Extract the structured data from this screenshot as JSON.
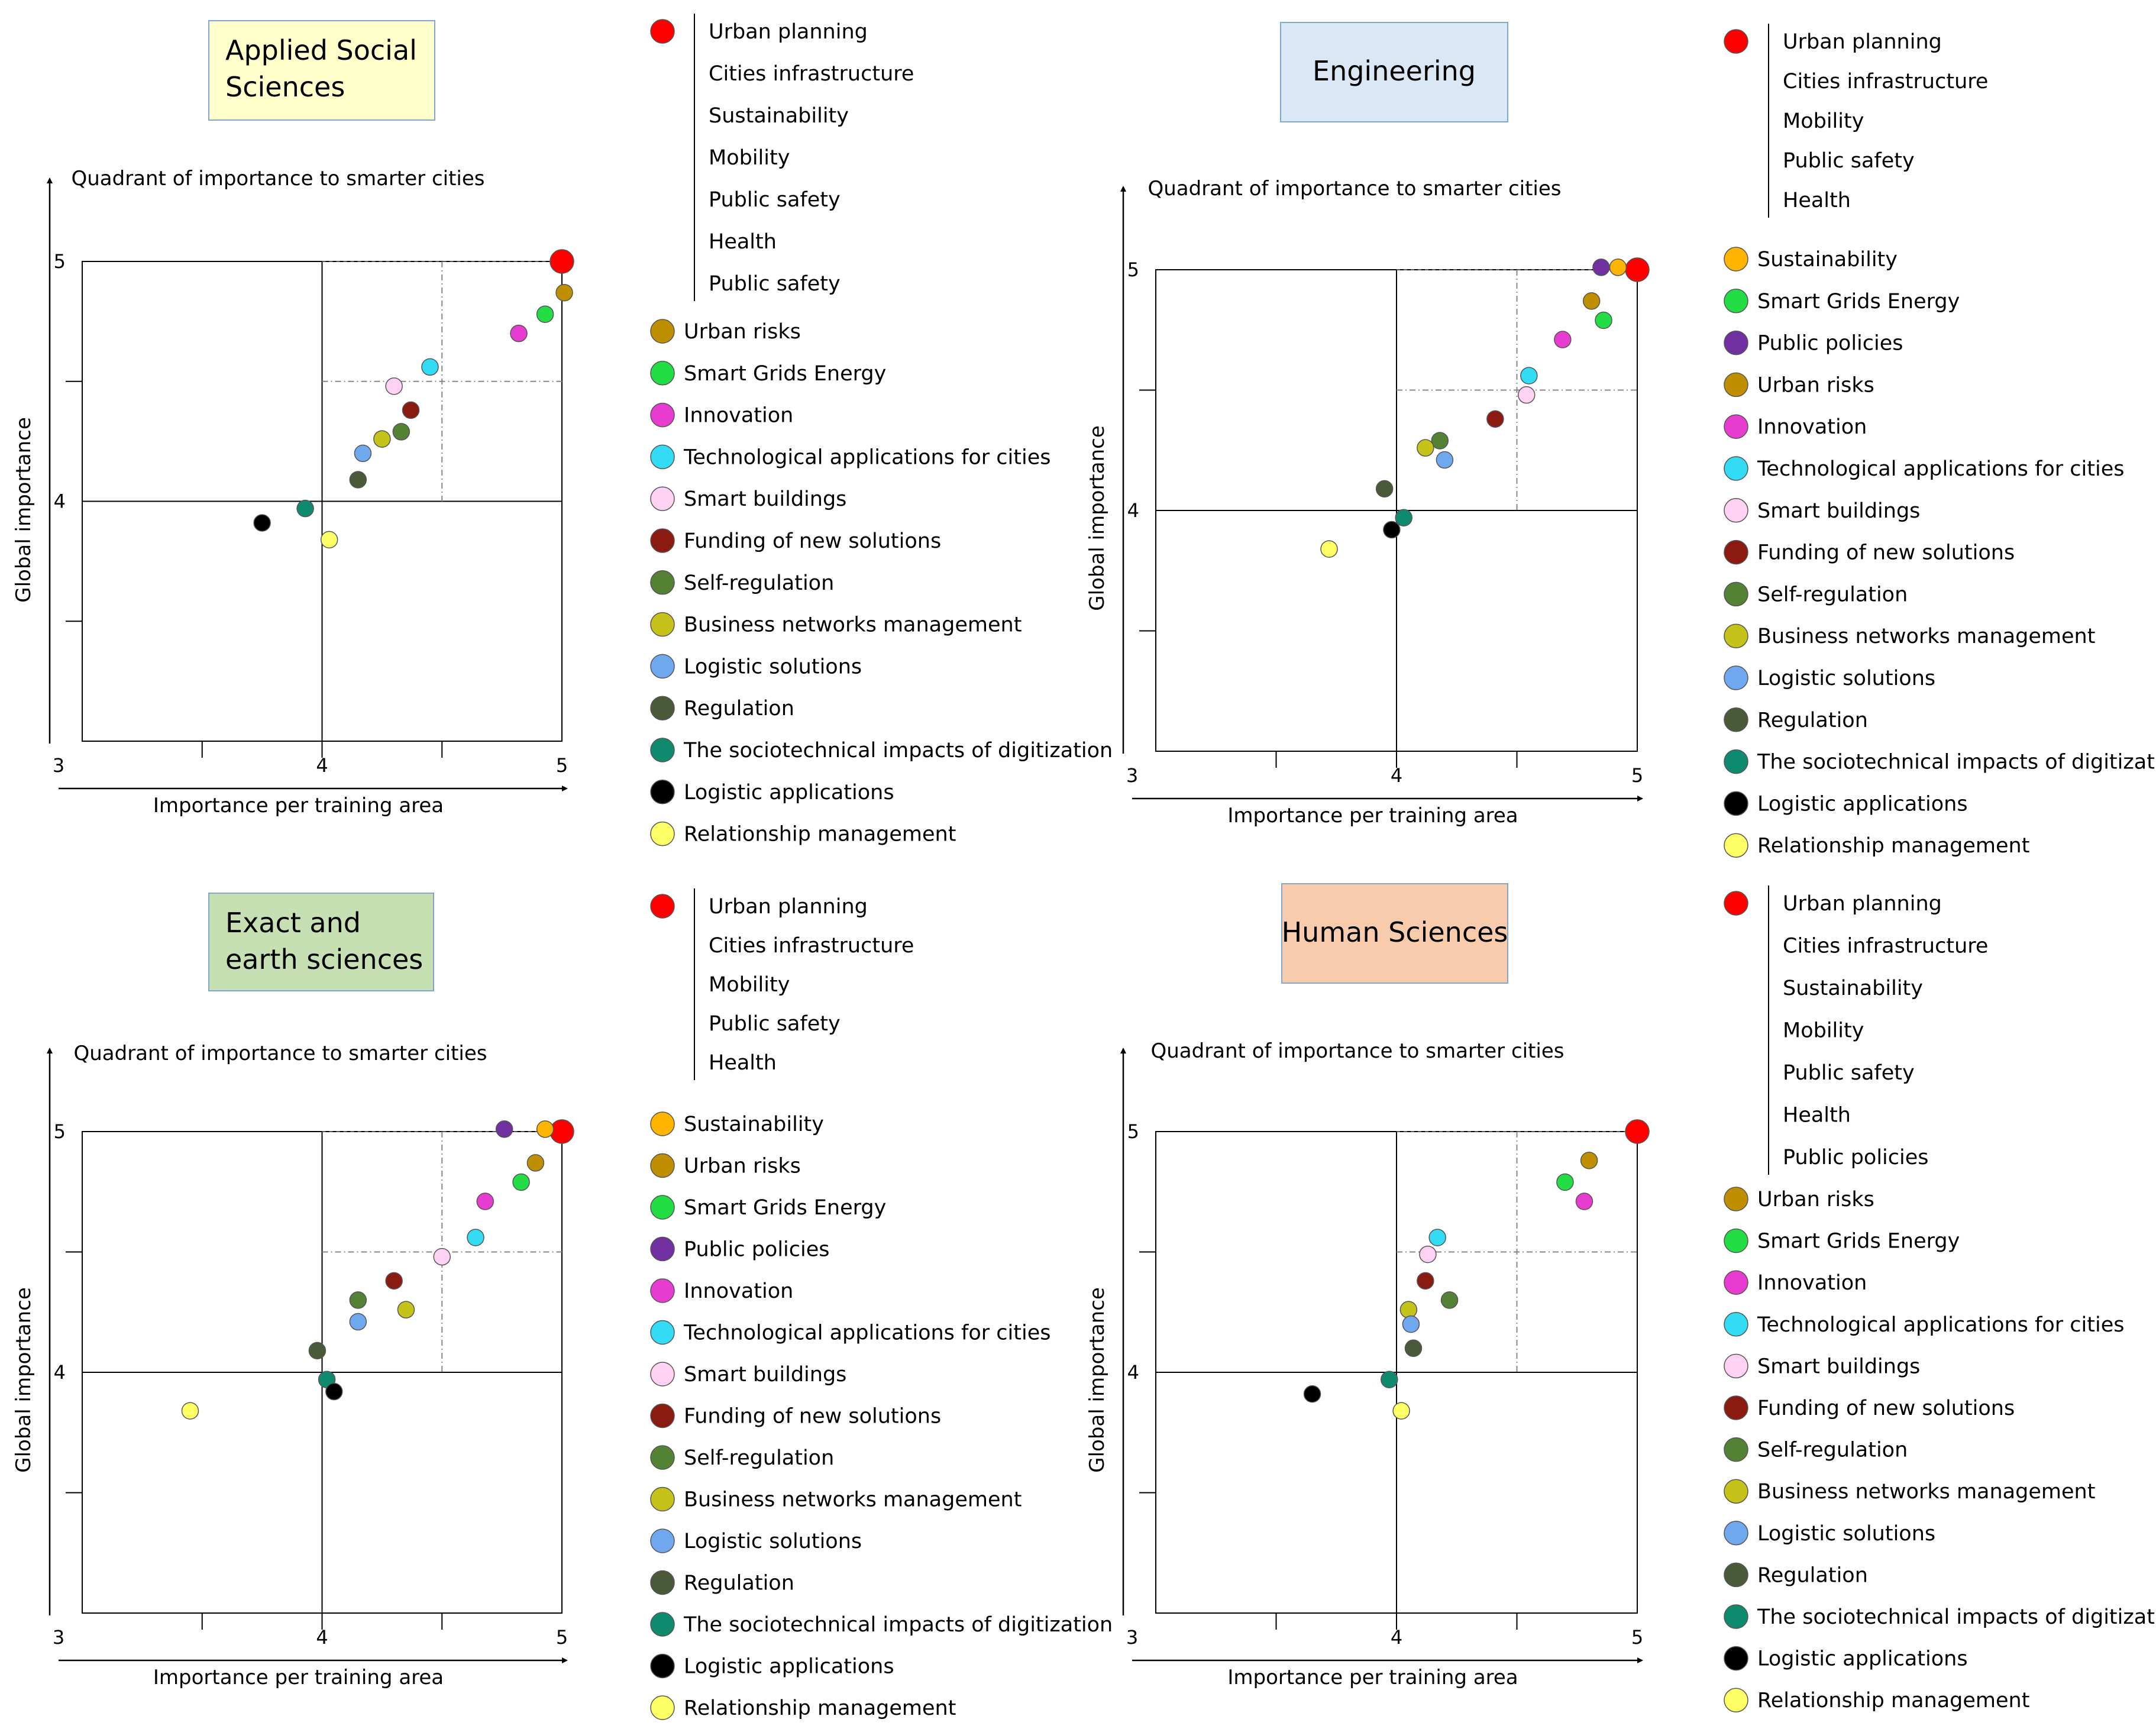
{
  "colors": {
    "red": "#ff0000",
    "gold": "#ffb400",
    "brown": "#bf8f00",
    "green": "#22dd44",
    "purple": "#7030a0",
    "magenta": "#e83bd0",
    "cyan": "#33dcf4",
    "pink": "#ffd2f4",
    "maroon": "#8b1a10",
    "olive": "#548235",
    "yellowgreen": "#c5c31a",
    "lightblue": "#70a8ef",
    "darkolive": "#4a5a38",
    "teal": "#0e8a6e",
    "black": "#000000",
    "yellow": "#ffff66"
  },
  "chart_data": [
    {
      "type": "scatter",
      "title": "Applied Social Sciences",
      "title_bg": "#ffffcc",
      "subtitle": "Quadrant of importance to smarter cities",
      "xlabel": "Importance per training area",
      "ylabel": "Global importance",
      "xlim": [
        3,
        5
      ],
      "ylim": [
        3,
        5
      ],
      "xticks": [
        "3",
        "4",
        "5"
      ],
      "yticks": [
        "4",
        "5"
      ],
      "points": [
        {
          "label": "Urban planning",
          "x": 5.0,
          "y": 5.0,
          "color": "red",
          "big": true
        },
        {
          "label": "Urban risks",
          "x": 5.01,
          "y": 4.87,
          "color": "brown"
        },
        {
          "label": "Smart Grids Energy",
          "x": 4.93,
          "y": 4.78,
          "color": "green"
        },
        {
          "label": "Innovation",
          "x": 4.82,
          "y": 4.7,
          "color": "magenta"
        },
        {
          "label": "Technological applications for cities",
          "x": 4.45,
          "y": 4.56,
          "color": "cyan"
        },
        {
          "label": "Smart buildings",
          "x": 4.3,
          "y": 4.48,
          "color": "pink"
        },
        {
          "label": "Funding of new solutions",
          "x": 4.37,
          "y": 4.38,
          "color": "maroon"
        },
        {
          "label": "Self-regulation",
          "x": 4.33,
          "y": 4.29,
          "color": "olive"
        },
        {
          "label": "Business networks management",
          "x": 4.25,
          "y": 4.26,
          "color": "yellowgreen"
        },
        {
          "label": "Logistic solutions",
          "x": 4.17,
          "y": 4.2,
          "color": "lightblue"
        },
        {
          "label": "Regulation",
          "x": 4.15,
          "y": 4.09,
          "color": "darkolive"
        },
        {
          "label": "The sociotechnical impacts of digitization",
          "x": 3.93,
          "y": 3.97,
          "color": "teal"
        },
        {
          "label": "Logistic applications",
          "x": 3.75,
          "y": 3.91,
          "color": "black"
        },
        {
          "label": "Relationship management",
          "x": 4.03,
          "y": 3.84,
          "color": "yellow"
        }
      ],
      "legend_group": [
        "Urban planning",
        "Cities infrastructure",
        "Sustainability",
        "Mobility",
        "Public safety",
        "Health",
        "Public safety"
      ],
      "legend_group_color": "red",
      "legend_items": [
        {
          "label": "Urban risks",
          "color": "brown"
        },
        {
          "label": "Smart Grids Energy",
          "color": "green"
        },
        {
          "label": "Innovation",
          "color": "magenta"
        },
        {
          "label": "Technological applications for cities",
          "color": "cyan"
        },
        {
          "label": "Smart buildings",
          "color": "pink"
        },
        {
          "label": "Funding of new solutions",
          "color": "maroon"
        },
        {
          "label": "Self-regulation",
          "color": "olive"
        },
        {
          "label": "Business networks management",
          "color": "yellowgreen"
        },
        {
          "label": "Logistic solutions",
          "color": "lightblue"
        },
        {
          "label": "Regulation",
          "color": "darkolive"
        },
        {
          "label": "The sociotechnical impacts of digitization",
          "color": "teal"
        },
        {
          "label": "Logistic applications",
          "color": "black"
        },
        {
          "label": "Relationship management",
          "color": "yellow"
        }
      ]
    },
    {
      "type": "scatter",
      "title": "Engineering",
      "title_bg": "#dae8f5",
      "subtitle": "Quadrant of importance to smarter cities",
      "xlabel": "Importance per training area",
      "ylabel": "Global importance",
      "xlim": [
        3,
        5
      ],
      "ylim": [
        3,
        5
      ],
      "xticks": [
        "3",
        "4",
        "5"
      ],
      "yticks": [
        "4",
        "5"
      ],
      "points": [
        {
          "label": "Urban planning",
          "x": 5.0,
          "y": 5.0,
          "color": "red",
          "big": true
        },
        {
          "label": "Sustainability",
          "x": 4.92,
          "y": 5.01,
          "color": "gold"
        },
        {
          "label": "Public policies",
          "x": 4.85,
          "y": 5.01,
          "color": "purple"
        },
        {
          "label": "Urban risks",
          "x": 4.81,
          "y": 4.87,
          "color": "brown"
        },
        {
          "label": "Smart Grids Energy",
          "x": 4.86,
          "y": 4.79,
          "color": "green"
        },
        {
          "label": "Innovation",
          "x": 4.69,
          "y": 4.71,
          "color": "magenta"
        },
        {
          "label": "Technological applications for cities",
          "x": 4.55,
          "y": 4.56,
          "color": "cyan"
        },
        {
          "label": "Smart buildings",
          "x": 4.54,
          "y": 4.48,
          "color": "pink"
        },
        {
          "label": "Funding of new solutions",
          "x": 4.41,
          "y": 4.38,
          "color": "maroon"
        },
        {
          "label": "Self-regulation",
          "x": 4.18,
          "y": 4.29,
          "color": "olive"
        },
        {
          "label": "Business networks management",
          "x": 4.12,
          "y": 4.26,
          "color": "yellowgreen"
        },
        {
          "label": "Logistic solutions",
          "x": 4.2,
          "y": 4.21,
          "color": "lightblue"
        },
        {
          "label": "Regulation",
          "x": 3.95,
          "y": 4.09,
          "color": "darkolive"
        },
        {
          "label": "The sociotechnical impacts of digitization",
          "x": 4.03,
          "y": 3.97,
          "color": "teal"
        },
        {
          "label": "Logistic applications",
          "x": 3.98,
          "y": 3.92,
          "color": "black"
        },
        {
          "label": "Relationship management",
          "x": 3.72,
          "y": 3.84,
          "color": "yellow"
        }
      ],
      "legend_group": [
        "Urban planning",
        "Cities infrastructure",
        "Mobility",
        "Public safety",
        "Health"
      ],
      "legend_group_color": "red",
      "legend_items": [
        {
          "label": "Sustainability",
          "color": "gold"
        },
        {
          "label": "Smart Grids Energy",
          "color": "green"
        },
        {
          "label": "Public policies",
          "color": "purple"
        },
        {
          "label": "Urban risks",
          "color": "brown"
        },
        {
          "label": "Innovation",
          "color": "magenta"
        },
        {
          "label": "Technological applications for cities",
          "color": "cyan"
        },
        {
          "label": "Smart buildings",
          "color": "pink"
        },
        {
          "label": "Funding of new solutions",
          "color": "maroon"
        },
        {
          "label": "Self-regulation",
          "color": "olive"
        },
        {
          "label": "Business networks management",
          "color": "yellowgreen"
        },
        {
          "label": "Logistic solutions",
          "color": "lightblue"
        },
        {
          "label": "Regulation",
          "color": "darkolive"
        },
        {
          "label": "The sociotechnical impacts of digitization",
          "color": "teal"
        },
        {
          "label": "Logistic applications",
          "color": "black"
        },
        {
          "label": "Relationship management",
          "color": "yellow"
        }
      ]
    },
    {
      "type": "scatter",
      "title": "Exact and earth sciences",
      "title_bg": "#c6e0b4",
      "subtitle": "Quadrant of importance to smarter cities",
      "xlabel": "Importance per training area",
      "ylabel": "Global importance",
      "xlim": [
        3,
        5
      ],
      "ylim": [
        3,
        5
      ],
      "xticks": [
        "3",
        "4",
        "5"
      ],
      "yticks": [
        "4",
        "5"
      ],
      "points": [
        {
          "label": "Urban planning",
          "x": 5.0,
          "y": 5.0,
          "color": "red",
          "big": true
        },
        {
          "label": "Sustainability",
          "x": 4.93,
          "y": 5.01,
          "color": "gold"
        },
        {
          "label": "Public policies",
          "x": 4.76,
          "y": 5.01,
          "color": "purple"
        },
        {
          "label": "Urban risks",
          "x": 4.89,
          "y": 4.87,
          "color": "brown"
        },
        {
          "label": "Smart Grids Energy",
          "x": 4.83,
          "y": 4.79,
          "color": "green"
        },
        {
          "label": "Innovation",
          "x": 4.68,
          "y": 4.71,
          "color": "magenta"
        },
        {
          "label": "Technological applications for cities",
          "x": 4.64,
          "y": 4.56,
          "color": "cyan"
        },
        {
          "label": "Smart buildings",
          "x": 4.5,
          "y": 4.48,
          "color": "pink"
        },
        {
          "label": "Funding of new solutions",
          "x": 4.3,
          "y": 4.38,
          "color": "maroon"
        },
        {
          "label": "Self-regulation",
          "x": 4.15,
          "y": 4.3,
          "color": "olive"
        },
        {
          "label": "Business networks management",
          "x": 4.35,
          "y": 4.26,
          "color": "yellowgreen"
        },
        {
          "label": "Logistic solutions",
          "x": 4.15,
          "y": 4.21,
          "color": "lightblue"
        },
        {
          "label": "Regulation",
          "x": 3.98,
          "y": 4.09,
          "color": "darkolive"
        },
        {
          "label": "The sociotechnical impacts of digitization",
          "x": 4.02,
          "y": 3.97,
          "color": "teal"
        },
        {
          "label": "Logistic applications",
          "x": 4.05,
          "y": 3.92,
          "color": "black"
        },
        {
          "label": "Relationship management",
          "x": 3.45,
          "y": 3.84,
          "color": "yellow"
        }
      ],
      "legend_group": [
        "Urban planning",
        "Cities infrastructure",
        "Mobility",
        "Public safety",
        "Health"
      ],
      "legend_group_color": "red",
      "legend_items": [
        {
          "label": "Sustainability",
          "color": "gold"
        },
        {
          "label": "Urban risks",
          "color": "brown"
        },
        {
          "label": "Smart Grids Energy",
          "color": "green"
        },
        {
          "label": "Public policies",
          "color": "purple"
        },
        {
          "label": "Innovation",
          "color": "magenta"
        },
        {
          "label": "Technological applications for cities",
          "color": "cyan"
        },
        {
          "label": "Smart buildings",
          "color": "pink"
        },
        {
          "label": "Funding of new solutions",
          "color": "maroon"
        },
        {
          "label": "Self-regulation",
          "color": "olive"
        },
        {
          "label": "Business networks management",
          "color": "yellowgreen"
        },
        {
          "label": "Logistic solutions",
          "color": "lightblue"
        },
        {
          "label": "Regulation",
          "color": "darkolive"
        },
        {
          "label": "The sociotechnical impacts of digitization",
          "color": "teal"
        },
        {
          "label": "Logistic applications",
          "color": "black"
        },
        {
          "label": "Relationship management",
          "color": "yellow"
        }
      ]
    },
    {
      "type": "scatter",
      "title": "Human Sciences",
      "title_bg": "#f8cbad",
      "subtitle": "Quadrant of importance to smarter cities",
      "xlabel": "Importance per training area",
      "ylabel": "Global importance",
      "xlim": [
        3,
        5
      ],
      "ylim": [
        3,
        5
      ],
      "xticks": [
        "3",
        "4",
        "5"
      ],
      "yticks": [
        "4",
        "5"
      ],
      "points": [
        {
          "label": "Urban planning",
          "x": 5.0,
          "y": 5.0,
          "color": "red",
          "big": true
        },
        {
          "label": "Urban risks",
          "x": 4.8,
          "y": 4.88,
          "color": "brown"
        },
        {
          "label": "Smart Grids Energy",
          "x": 4.7,
          "y": 4.79,
          "color": "green"
        },
        {
          "label": "Innovation",
          "x": 4.78,
          "y": 4.71,
          "color": "magenta"
        },
        {
          "label": "Technological applications for cities",
          "x": 4.17,
          "y": 4.56,
          "color": "cyan"
        },
        {
          "label": "Smart buildings",
          "x": 4.13,
          "y": 4.49,
          "color": "pink"
        },
        {
          "label": "Funding of new solutions",
          "x": 4.12,
          "y": 4.38,
          "color": "maroon"
        },
        {
          "label": "Self-regulation",
          "x": 4.22,
          "y": 4.3,
          "color": "olive"
        },
        {
          "label": "Business networks management",
          "x": 4.05,
          "y": 4.26,
          "color": "yellowgreen"
        },
        {
          "label": "Logistic solutions",
          "x": 4.06,
          "y": 4.2,
          "color": "lightblue"
        },
        {
          "label": "Regulation",
          "x": 4.07,
          "y": 4.1,
          "color": "darkolive"
        },
        {
          "label": "The sociotechnical impacts of digitization",
          "x": 3.97,
          "y": 3.97,
          "color": "teal"
        },
        {
          "label": "Logistic applications",
          "x": 3.65,
          "y": 3.91,
          "color": "black"
        },
        {
          "label": "Relationship management",
          "x": 4.02,
          "y": 3.84,
          "color": "yellow"
        }
      ],
      "legend_group": [
        "Urban planning",
        "Cities infrastructure",
        "Sustainability",
        "Mobility",
        "Public safety",
        "Health",
        "Public policies"
      ],
      "legend_group_color": "red",
      "legend_items": [
        {
          "label": "Urban risks",
          "color": "brown"
        },
        {
          "label": "Smart Grids Energy",
          "color": "green"
        },
        {
          "label": "Innovation",
          "color": "magenta"
        },
        {
          "label": "Technological applications for cities",
          "color": "cyan"
        },
        {
          "label": "Smart buildings",
          "color": "pink"
        },
        {
          "label": "Funding of new solutions",
          "color": "maroon"
        },
        {
          "label": "Self-regulation",
          "color": "olive"
        },
        {
          "label": "Business networks management",
          "color": "yellowgreen"
        },
        {
          "label": "Logistic solutions",
          "color": "lightblue"
        },
        {
          "label": "Regulation",
          "color": "darkolive"
        },
        {
          "label": "The sociotechnical impacts of digitization",
          "color": "teal"
        },
        {
          "label": "Logistic applications",
          "color": "black"
        },
        {
          "label": "Relationship management",
          "color": "yellow"
        }
      ]
    }
  ]
}
